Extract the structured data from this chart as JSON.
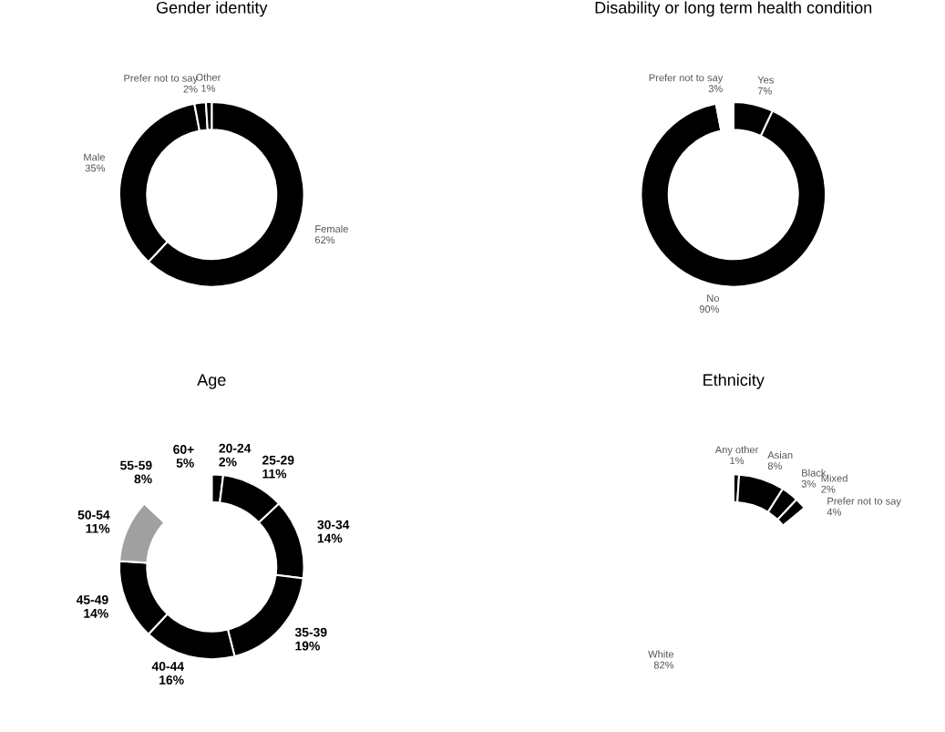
{
  "chart_data": [
    {
      "type": "donut",
      "title": "Gender identity",
      "categories": [
        "Female",
        "Male",
        "Prefer not to say",
        "Other"
      ],
      "values": [
        62,
        35,
        2,
        1
      ],
      "value_labels": [
        "62%",
        "35%",
        "2%",
        "1%"
      ],
      "colors": [
        "#000000",
        "#000000",
        "#000000",
        "#000000"
      ]
    },
    {
      "type": "donut",
      "title": "Disability or long term health condition",
      "categories": [
        "Yes",
        "No",
        "Prefer not to say"
      ],
      "values": [
        7,
        90,
        3
      ],
      "value_labels": [
        "7%",
        "90%",
        "3%"
      ],
      "colors": [
        "#000000",
        "#000000",
        "#ffffff"
      ]
    },
    {
      "type": "donut",
      "title": "Age",
      "categories": [
        "20-24",
        "25-29",
        "30-34",
        "35-39",
        "40-44",
        "45-49",
        "50-54",
        "55-59",
        "60+"
      ],
      "values": [
        2,
        11,
        14,
        19,
        16,
        14,
        11,
        8,
        5
      ],
      "value_labels": [
        "2%",
        "11%",
        "14%",
        "19%",
        "16%",
        "14%",
        "11%",
        "8%",
        "5%"
      ],
      "colors": [
        "#000000",
        "#000000",
        "#000000",
        "#000000",
        "#000000",
        "#000000",
        "#a0a0a0",
        "#ffffff",
        "#ffffff"
      ]
    },
    {
      "type": "donut",
      "title": "Ethnicity",
      "categories": [
        "Any other",
        "Asian",
        "Black",
        "Mixed",
        "Prefer not to say",
        "White"
      ],
      "values": [
        1,
        8,
        3,
        2,
        4,
        82
      ],
      "value_labels": [
        "1%",
        "8%",
        "3%",
        "2%",
        "4%",
        "82%"
      ],
      "colors": [
        "#000000",
        "#000000",
        "#000000",
        "#000000",
        "#ffffff",
        "#ffffff"
      ]
    }
  ]
}
